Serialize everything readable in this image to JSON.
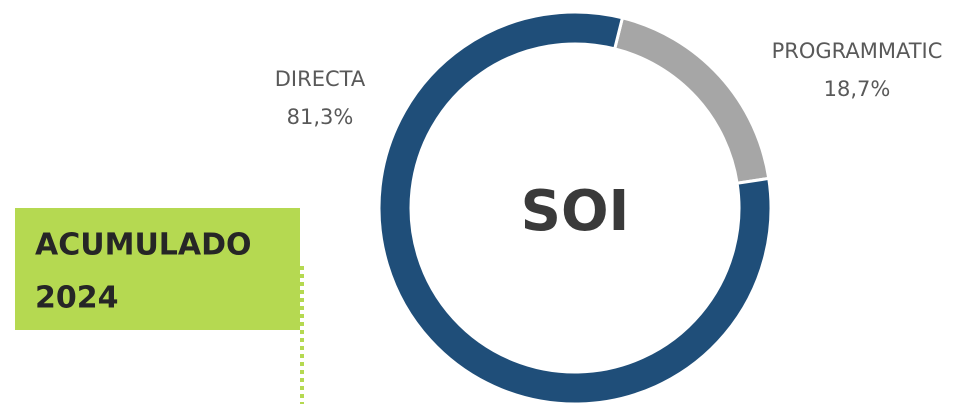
{
  "chart_data": {
    "type": "donut",
    "center_label": "SOI",
    "badge": [
      "ACUMULADO",
      "2024"
    ],
    "categories": [
      "PROGRAMMATIC",
      "DIRECTA"
    ],
    "values": [
      18.7,
      81.3
    ],
    "value_labels": [
      "18,7%",
      "81,3%"
    ],
    "colors": [
      "#a6a6a6",
      "#1f4e79"
    ]
  }
}
